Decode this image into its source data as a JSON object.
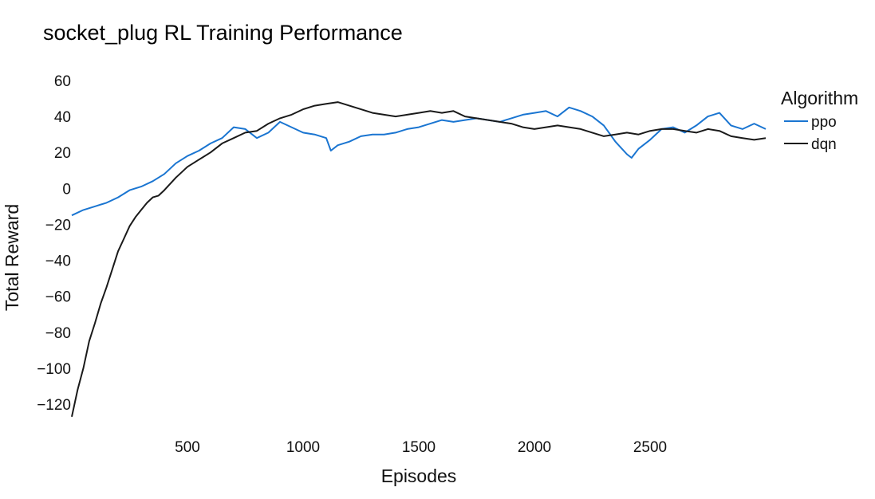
{
  "chart_data": {
    "type": "line",
    "title": "socket_plug RL Training Performance",
    "xlabel": "Episodes",
    "ylabel": "Total Reward",
    "xlim": [
      0,
      3000
    ],
    "ylim": [
      -130,
      60
    ],
    "xticks": [
      500,
      1000,
      1500,
      2000,
      2500
    ],
    "xtick_labels": [
      "500",
      "1000",
      "1500",
      "2000",
      "2500"
    ],
    "yticks": [
      -120,
      -100,
      -80,
      -60,
      -40,
      -20,
      0,
      20,
      40,
      60
    ],
    "ytick_labels": [
      "−120",
      "−100",
      "−80",
      "−60",
      "−40",
      "−20",
      "0",
      "20",
      "40",
      "60"
    ],
    "grid": false,
    "legend": {
      "title": "Algorithm",
      "position": "right"
    },
    "series": [
      {
        "name": "ppo",
        "color": "#1a75d1",
        "x": [
          0,
          50,
          100,
          150,
          200,
          250,
          300,
          350,
          400,
          450,
          500,
          550,
          600,
          650,
          700,
          750,
          800,
          850,
          900,
          950,
          1000,
          1050,
          1100,
          1120,
          1150,
          1200,
          1250,
          1300,
          1350,
          1400,
          1450,
          1500,
          1550,
          1600,
          1650,
          1700,
          1750,
          1800,
          1850,
          1900,
          1950,
          2000,
          2050,
          2100,
          2150,
          2200,
          2250,
          2300,
          2350,
          2400,
          2420,
          2450,
          2500,
          2550,
          2600,
          2650,
          2700,
          2750,
          2800,
          2850,
          2900,
          2950,
          3000
        ],
        "values": [
          -15,
          -12,
          -10,
          -8,
          -5,
          -1,
          1,
          4,
          8,
          14,
          18,
          21,
          25,
          28,
          34,
          33,
          28,
          31,
          37,
          34,
          31,
          30,
          28,
          21,
          24,
          26,
          29,
          30,
          30,
          31,
          33,
          34,
          36,
          38,
          37,
          38,
          39,
          38,
          37,
          39,
          41,
          42,
          43,
          40,
          45,
          43,
          40,
          35,
          26,
          19,
          17,
          22,
          27,
          33,
          34,
          31,
          35,
          40,
          42,
          35,
          33,
          36,
          33
        ]
      },
      {
        "name": "dqn",
        "color": "#1a1a1a",
        "x": [
          0,
          25,
          50,
          75,
          100,
          125,
          150,
          175,
          200,
          225,
          250,
          275,
          300,
          325,
          350,
          375,
          400,
          450,
          500,
          550,
          600,
          650,
          700,
          750,
          800,
          850,
          900,
          950,
          1000,
          1050,
          1100,
          1150,
          1200,
          1250,
          1300,
          1350,
          1400,
          1450,
          1500,
          1550,
          1600,
          1650,
          1700,
          1750,
          1800,
          1850,
          1900,
          1950,
          2000,
          2050,
          2100,
          2150,
          2200,
          2250,
          2300,
          2350,
          2400,
          2450,
          2500,
          2550,
          2600,
          2650,
          2700,
          2750,
          2800,
          2850,
          2900,
          2950,
          3000
        ],
        "values": [
          -127,
          -112,
          -100,
          -85,
          -75,
          -64,
          -55,
          -45,
          -35,
          -28,
          -21,
          -16,
          -12,
          -8,
          -5,
          -4,
          -1,
          6,
          12,
          16,
          20,
          25,
          28,
          31,
          32,
          36,
          39,
          41,
          44,
          46,
          47,
          48,
          46,
          44,
          42,
          41,
          40,
          41,
          42,
          43,
          42,
          43,
          40,
          39,
          38,
          37,
          36,
          34,
          33,
          34,
          35,
          34,
          33,
          31,
          29,
          30,
          31,
          30,
          32,
          33,
          33,
          32,
          31,
          33,
          32,
          29,
          28,
          27,
          28
        ]
      }
    ]
  }
}
